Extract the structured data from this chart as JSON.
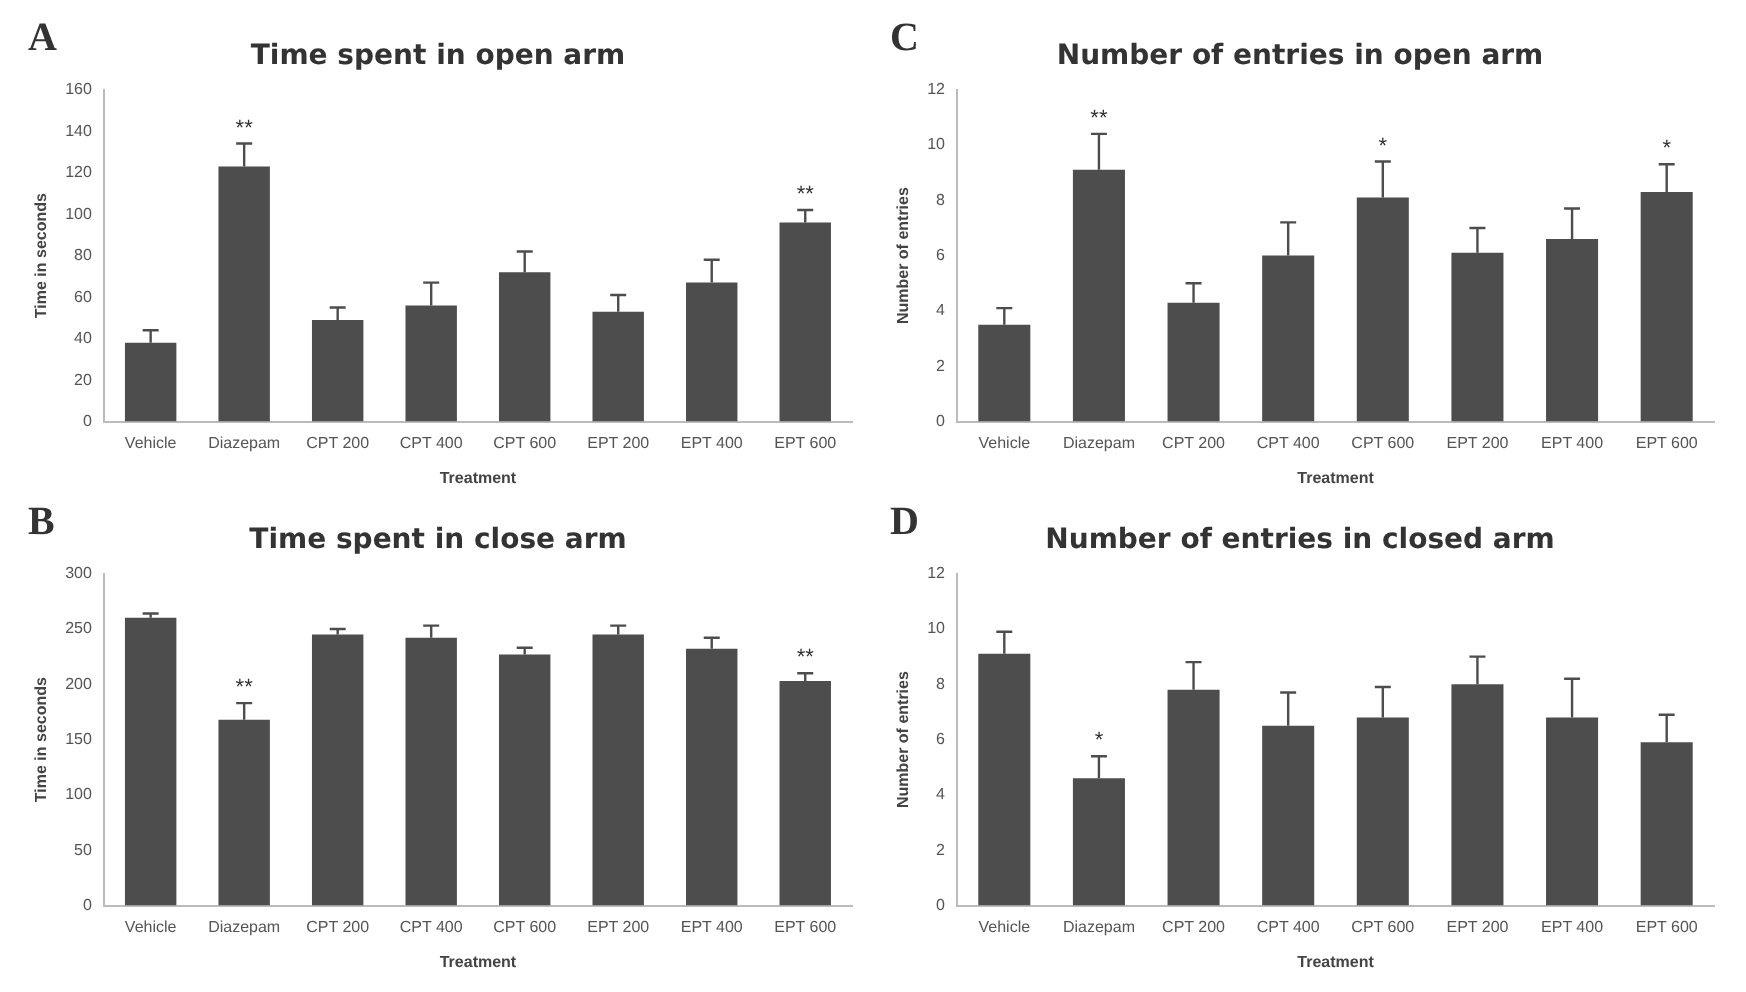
{
  "chart_data": [
    {
      "type": "bar",
      "title": "Time spent in open arm",
      "xlabel": "Treatment",
      "ylabel": "Time in seconds",
      "categories": [
        "Vehicle",
        "Diazepam",
        "CPT 200",
        "CPT 400",
        "CPT 600",
        "EPT 200",
        "EPT 400",
        "EPT 600"
      ],
      "values": [
        38,
        123,
        49,
        56,
        72,
        53,
        67,
        96
      ],
      "errors": [
        [
          38,
          44
        ],
        [
          123,
          134
        ],
        [
          49,
          55
        ],
        [
          56,
          67
        ],
        [
          72,
          82
        ],
        [
          53,
          61
        ],
        [
          67,
          78
        ],
        [
          96,
          102
        ]
      ],
      "color": "#4d4d4d",
      "ylim": [
        0,
        160
      ],
      "yticks": [
        0,
        20,
        40,
        60,
        80,
        100,
        120,
        140,
        160
      ],
      "grid": false,
      "legend": false,
      "annotations": [
        "A",
        {
          "text": "**",
          "x": "Diazepam",
          "y": 134
        },
        {
          "text": "**",
          "x": "EPT 600",
          "y": 102
        }
      ]
    },
    {
      "type": "bar",
      "title": "Number of entries in open arm",
      "xlabel": "Treatment",
      "ylabel": "Number of entries",
      "categories": [
        "Vehicle",
        "Diazepam",
        "CPT 200",
        "CPT 400",
        "CPT 600",
        "EPT 200",
        "EPT 400",
        "EPT 600"
      ],
      "values": [
        3.5,
        9.1,
        4.3,
        6.0,
        8.1,
        6.1,
        6.6,
        8.3
      ],
      "errors": [
        [
          3.5,
          4.1
        ],
        [
          9.1,
          10.4
        ],
        [
          4.3,
          5.0
        ],
        [
          6.0,
          7.2
        ],
        [
          8.1,
          9.4
        ],
        [
          6.1,
          7.0
        ],
        [
          6.6,
          7.7
        ],
        [
          8.3,
          9.3
        ]
      ],
      "color": "#4d4d4d",
      "ylim": [
        0,
        12
      ],
      "yticks": [
        0,
        2,
        4,
        6,
        8,
        10,
        12
      ],
      "grid": false,
      "legend": false,
      "annotations": [
        "C",
        {
          "text": "**",
          "x": "Diazepam",
          "y": 10.4
        },
        {
          "text": "*",
          "x": "CPT 600",
          "y": 9.4
        },
        {
          "text": "*",
          "x": "EPT 600",
          "y": 9.3
        }
      ]
    },
    {
      "type": "bar",
      "title": "Time spent in close arm",
      "xlabel": "Treatment",
      "ylabel": "Time in seconds",
      "categories": [
        "Vehicle",
        "Diazepam",
        "CPT 200",
        "CPT 400",
        "CPT 600",
        "EPT 200",
        "EPT 400",
        "EPT 600"
      ],
      "values": [
        260,
        168,
        245,
        242,
        227,
        245,
        232,
        203
      ],
      "errors": [
        [
          260,
          264
        ],
        [
          168,
          183
        ],
        [
          245,
          250
        ],
        [
          242,
          253
        ],
        [
          227,
          233
        ],
        [
          245,
          253
        ],
        [
          232,
          242
        ],
        [
          203,
          210
        ]
      ],
      "color": "#4d4d4d",
      "ylim": [
        0,
        300
      ],
      "yticks": [
        0,
        50,
        100,
        150,
        200,
        250,
        300
      ],
      "grid": false,
      "legend": false,
      "annotations": [
        "B",
        {
          "text": "**",
          "x": "Diazepam",
          "y": 183
        },
        {
          "text": "**",
          "x": "EPT 600",
          "y": 210
        }
      ]
    },
    {
      "type": "bar",
      "title": "Number of entries in closed arm",
      "xlabel": "Treatment",
      "ylabel": "Number of entries",
      "categories": [
        "Vehicle",
        "Diazepam",
        "CPT 200",
        "CPT 400",
        "CPT 600",
        "EPT 200",
        "EPT 400",
        "EPT 600"
      ],
      "values": [
        9.1,
        4.6,
        7.8,
        6.5,
        6.8,
        8.0,
        6.8,
        5.9
      ],
      "errors": [
        [
          9.1,
          9.9
        ],
        [
          4.6,
          5.4
        ],
        [
          7.8,
          8.8
        ],
        [
          6.5,
          7.7
        ],
        [
          6.8,
          7.9
        ],
        [
          8.0,
          9.0
        ],
        [
          6.8,
          8.2
        ],
        [
          5.9,
          6.9
        ]
      ],
      "color": "#4d4d4d",
      "ylim": [
        0,
        12
      ],
      "yticks": [
        0,
        2,
        4,
        6,
        8,
        10,
        12
      ],
      "grid": false,
      "legend": false,
      "annotations": [
        "D",
        {
          "text": "*",
          "x": "Diazepam",
          "y": 5.4
        }
      ]
    }
  ]
}
